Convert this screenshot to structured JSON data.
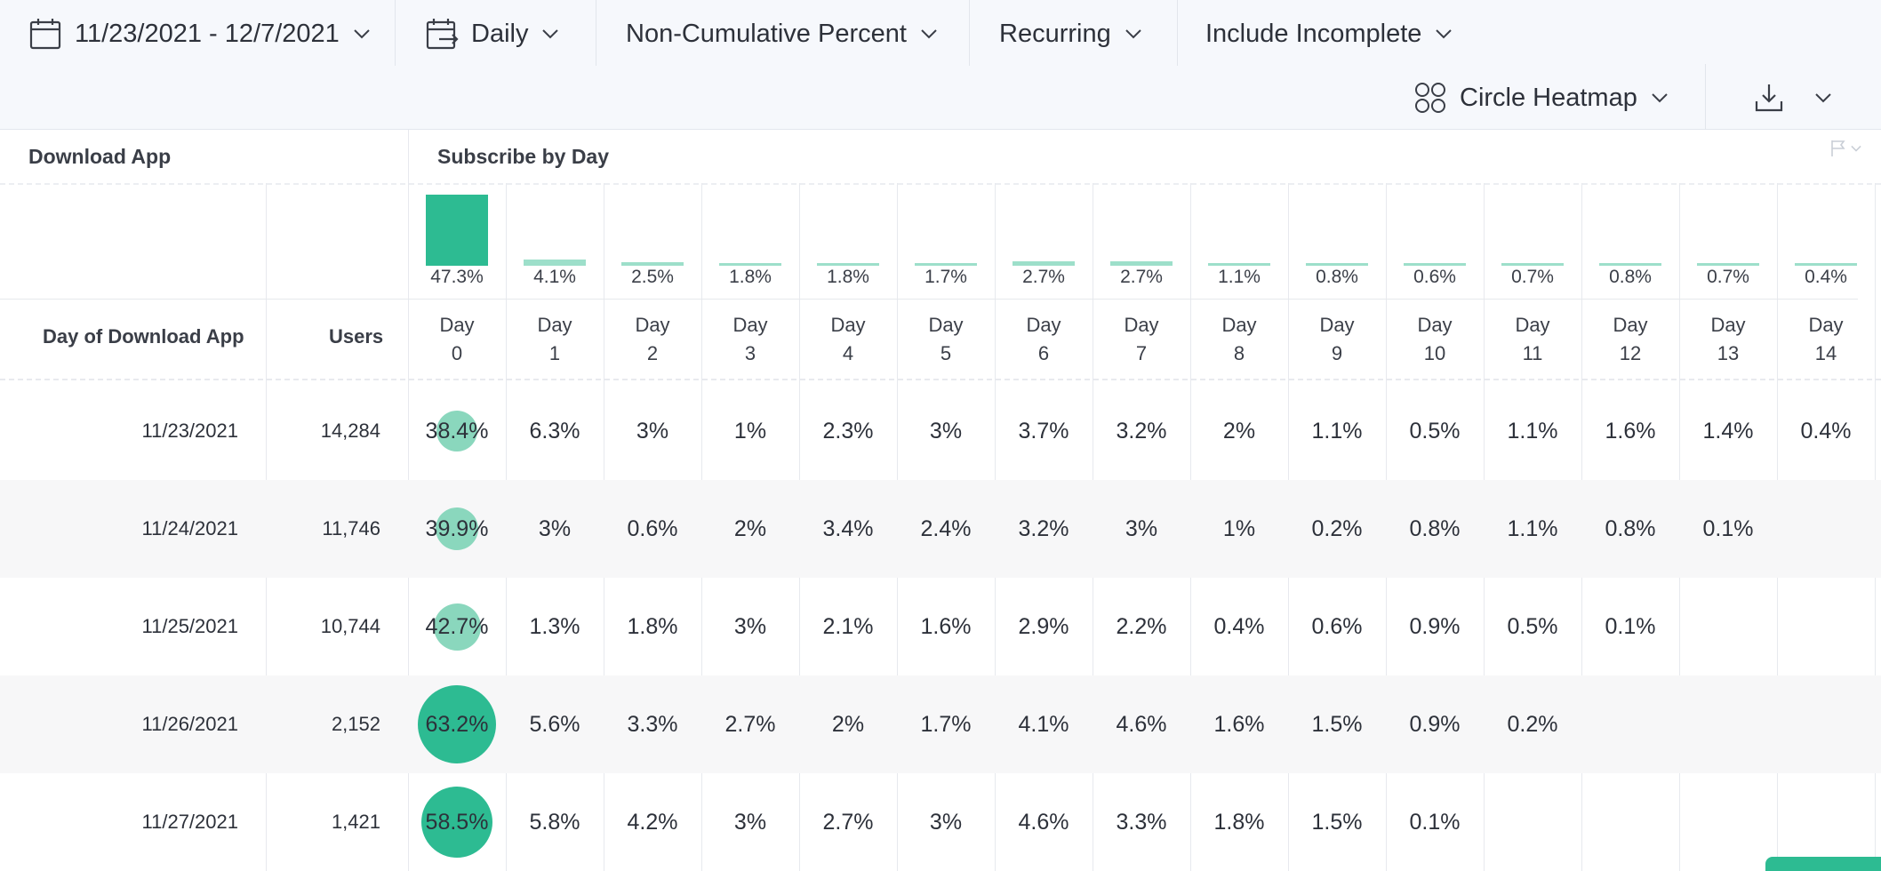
{
  "toolbar": {
    "date_range": "11/23/2021 - 12/7/2021",
    "interval": "Daily",
    "measure": "Non-Cumulative Percent",
    "mode": "Recurring",
    "incomplete": "Include Incomplete",
    "viz": "Circle Heatmap"
  },
  "sections": {
    "left": "Download App",
    "right": "Subscribe by Day"
  },
  "columns": {
    "date_header": "Day of Download App",
    "users_header": "Users",
    "day_word": "Day",
    "days": [
      "0",
      "1",
      "2",
      "3",
      "4",
      "5",
      "6",
      "7",
      "8",
      "9",
      "10",
      "11",
      "12",
      "13",
      "14"
    ]
  },
  "summary": {
    "labels": [
      "47.3%",
      "4.1%",
      "2.5%",
      "1.8%",
      "1.8%",
      "1.7%",
      "2.7%",
      "2.7%",
      "1.1%",
      "0.8%",
      "0.6%",
      "0.7%",
      "0.8%",
      "0.7%",
      "0.4%"
    ],
    "values": [
      47.3,
      4.1,
      2.5,
      1.8,
      1.8,
      1.7,
      2.7,
      2.7,
      1.1,
      0.8,
      0.6,
      0.7,
      0.8,
      0.7,
      0.4
    ]
  },
  "rows": [
    {
      "date": "11/23/2021",
      "users": "14,284",
      "cells": [
        "38.4%",
        "6.3%",
        "3%",
        "1%",
        "2.3%",
        "3%",
        "3.7%",
        "3.2%",
        "2%",
        "1.1%",
        "0.5%",
        "1.1%",
        "1.6%",
        "1.4%",
        "0.4%"
      ],
      "day0": 38.4
    },
    {
      "date": "11/24/2021",
      "users": "11,746",
      "cells": [
        "39.9%",
        "3%",
        "0.6%",
        "2%",
        "3.4%",
        "2.4%",
        "3.2%",
        "3%",
        "1%",
        "0.2%",
        "0.8%",
        "1.1%",
        "0.8%",
        "0.1%",
        ""
      ],
      "day0": 39.9
    },
    {
      "date": "11/25/2021",
      "users": "10,744",
      "cells": [
        "42.7%",
        "1.3%",
        "1.8%",
        "3%",
        "2.1%",
        "1.6%",
        "2.9%",
        "2.2%",
        "0.4%",
        "0.6%",
        "0.9%",
        "0.5%",
        "0.1%",
        "",
        ""
      ],
      "day0": 42.7
    },
    {
      "date": "11/26/2021",
      "users": "2,152",
      "cells": [
        "63.2%",
        "5.6%",
        "3.3%",
        "2.7%",
        "2%",
        "1.7%",
        "4.1%",
        "4.6%",
        "1.6%",
        "1.5%",
        "0.9%",
        "0.2%",
        "",
        "",
        ""
      ],
      "day0": 63.2
    },
    {
      "date": "11/27/2021",
      "users": "1,421",
      "cells": [
        "58.5%",
        "5.8%",
        "4.2%",
        "3%",
        "2.7%",
        "3%",
        "4.6%",
        "3.3%",
        "1.8%",
        "1.5%",
        "0.1%",
        "",
        "",
        "",
        ""
      ],
      "day0": 58.5
    }
  ],
  "colors": {
    "accent": "#2dbb92",
    "bar_light": "#9ddfca",
    "circle_light": "#8ad7bd",
    "circle_dark": "#2dbb92"
  }
}
